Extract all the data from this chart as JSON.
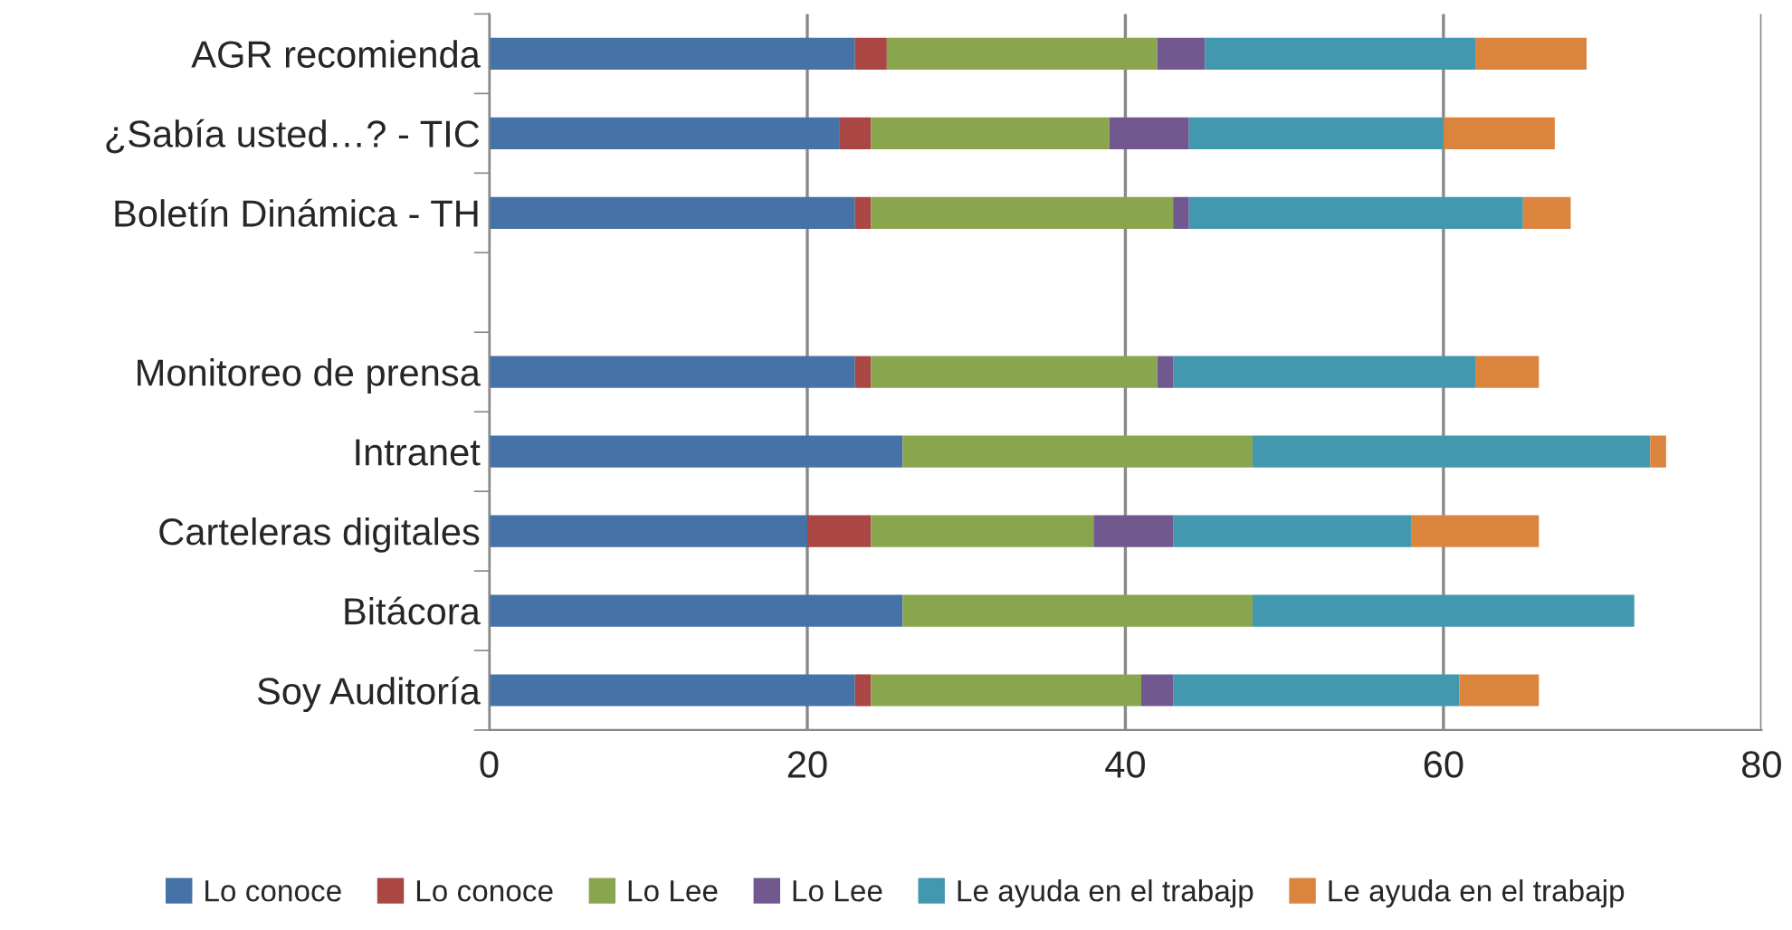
{
  "chart_data": {
    "type": "bar",
    "orientation": "horizontal",
    "stacked": true,
    "categories": [
      "AGR recomienda",
      "¿Sabía usted…? - TIC",
      "Boletín Dinámica - TH",
      null,
      "Monitoreo de prensa",
      "Intranet",
      "Carteleras digitales",
      "Bitácora",
      "Soy Auditoría"
    ],
    "series": [
      {
        "name": "Lo conoce",
        "color": "#4572a7",
        "values": [
          23,
          22,
          23,
          null,
          23,
          26,
          20,
          26,
          23
        ]
      },
      {
        "name": "Lo conoce",
        "color": "#aa4643",
        "values": [
          2,
          2,
          1,
          null,
          1,
          0,
          4,
          0,
          1
        ]
      },
      {
        "name": "Lo Lee",
        "color": "#89a54e",
        "values": [
          17,
          15,
          19,
          null,
          18,
          22,
          14,
          22,
          17
        ]
      },
      {
        "name": "Lo Lee",
        "color": "#71588f",
        "values": [
          3,
          5,
          1,
          null,
          1,
          0,
          5,
          0,
          2
        ]
      },
      {
        "name": "Le ayuda en el trabajp",
        "color": "#4198af",
        "values": [
          17,
          16,
          21,
          null,
          19,
          25,
          15,
          24,
          18
        ]
      },
      {
        "name": "Le ayuda en el trabajp",
        "color": "#db843d",
        "values": [
          7,
          7,
          3,
          null,
          4,
          1,
          8,
          0,
          5
        ]
      }
    ],
    "xlim": [
      0,
      80
    ],
    "xticks": [
      0,
      20,
      40,
      60,
      80
    ],
    "grid": "x",
    "legend": "bottom"
  }
}
